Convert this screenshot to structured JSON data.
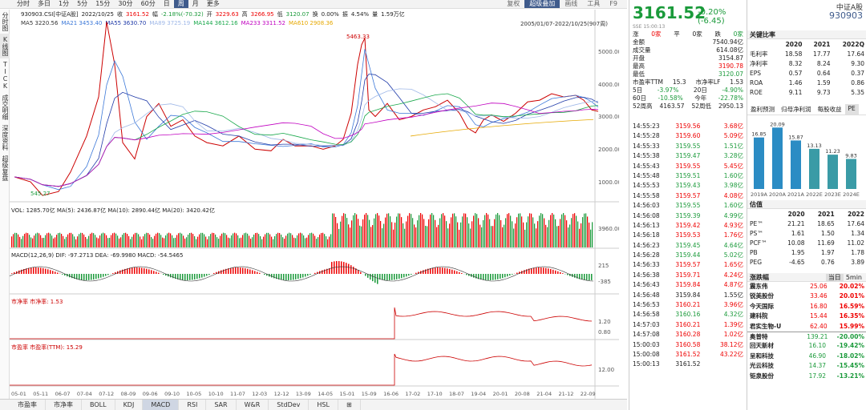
{
  "top_tabs": [
    "分时",
    "多日",
    "1分",
    "5分",
    "15分",
    "30分",
    "60分",
    "日",
    "周",
    "月",
    "更多"
  ],
  "active_tab": "周",
  "top_tools": [
    "复权",
    "超级叠加",
    "画线",
    "工具",
    "F9"
  ],
  "info_bar": {
    "code": "930903.CSI[中证A股]",
    "date": "2022/10/25",
    "close_label": "收",
    "close": "3161.52",
    "amp_label": "幅",
    "amp": "-2.18%(-70.32)",
    "open_label": "开",
    "open": "3229.63",
    "high_label": "高",
    "high": "3266.95",
    "low_label": "低",
    "low": "3120.07",
    "chg_label": "换",
    "chg": "0.00%",
    "swing_label": "振",
    "swing": "4.54%",
    "vol_label": "量",
    "vol": "1.59万亿"
  },
  "ma_items": [
    {
      "t": "MA5 3220.56",
      "c": "#333"
    },
    {
      "t": "MA21 3453.40",
      "c": "#3c78d8"
    },
    {
      "t": "MA55 3630.70",
      "c": "#1f3aa8"
    },
    {
      "t": "MA89 3725.19",
      "c": "#9fb8e8"
    },
    {
      "t": "MA144 3612.16",
      "c": "#19a84b"
    },
    {
      "t": "MA233 3311.52",
      "c": "#c000c0"
    },
    {
      "t": "MA610 2908.36",
      "c": "#e6a800"
    }
  ],
  "date_range": "2005/01/07-2022/10/25(907周)",
  "left_vtabs": [
    "分时图",
    "K线图",
    "TICK",
    "成交明细",
    "深度资料",
    "超级复盘"
  ],
  "price_axis": [
    "5000.00",
    "4000.00",
    "3000.00",
    "2000.00",
    "1000.00"
  ],
  "peak_label": "5463.33",
  "low_label": "545.27",
  "vol_line": "VOL: 1285.70亿  MA(5): 2436.87亿  MA(10): 2890.44亿  MA(20): 3420.42亿",
  "vol_axis": "3960.00亿",
  "macd_line": "MACD(12,26,9)  DIF: -97.2713  DEA: -69.9980  MACD: -54.5465",
  "macd_axis": [
    "215",
    "-385"
  ],
  "pb_line": "市净率  市净率: 1.53",
  "pb_axis": [
    "1.20",
    "0.80"
  ],
  "pe_line": "市盈率  市盈率(TTM): 15.29",
  "pe_axis": [
    "12.00"
  ],
  "x_dates": [
    "05-01",
    "05-11",
    "06-07",
    "07-04",
    "07-12",
    "08-09",
    "09-06",
    "09-10",
    "10-05",
    "10-10",
    "11-07",
    "12-03",
    "12-12",
    "13-09",
    "14-05",
    "15-01",
    "15-09",
    "16-06",
    "17-02",
    "17-10",
    "18-07",
    "19-04",
    "20-01",
    "20-08",
    "21-04",
    "21-12",
    "22-09"
  ],
  "bottom_tabs": [
    "市盈率",
    "市净率",
    "BOLL",
    "KDJ",
    "MACD",
    "RSI",
    "SAR",
    "W&R",
    "StdDev",
    "HSL",
    "⊞"
  ],
  "price": {
    "last": "3161.52",
    "change": "-0.20% (-6.45)",
    "sub": "SSE 15:00:13"
  },
  "header_right": {
    "name": "中证A股",
    "code": "930903"
  },
  "stats_top": [
    {
      "k": "涨",
      "v": "0家"
    },
    {
      "k": "平",
      "v": "0家"
    },
    {
      "k": "跌",
      "v": "0家"
    }
  ],
  "stats": [
    {
      "k": "金额",
      "v": "7540.94亿"
    },
    {
      "k": "成交量",
      "v": "614.08亿"
    },
    {
      "k": "开盘",
      "v": "3154.87"
    },
    {
      "k": "最高",
      "v": "3190.78"
    },
    {
      "k": "最低",
      "v": "3120.07"
    }
  ],
  "stats2": [
    {
      "k": "市盈率TTM",
      "v": "15.3",
      "k2": "市净率LF",
      "v2": "1.53"
    },
    {
      "k": "5日",
      "v": "-3.97%",
      "k2": "20日",
      "v2": "-4.90%"
    },
    {
      "k": "60日",
      "v": "-10.58%",
      "k2": "今年",
      "v2": "-22.78%"
    },
    {
      "k": "52周高",
      "v": "4163.57",
      "k2": "52周低",
      "v2": "2950.13"
    }
  ],
  "trades": [
    {
      "t": "14:55:23",
      "p": "3159.56",
      "v": "3.68亿",
      "d": "r"
    },
    {
      "t": "14:55:28",
      "p": "3159.60",
      "v": "5.09亿",
      "d": "r"
    },
    {
      "t": "14:55:33",
      "p": "3159.55",
      "v": "1.51亿",
      "d": "g"
    },
    {
      "t": "14:55:38",
      "p": "3159.47",
      "v": "3.28亿",
      "d": "g"
    },
    {
      "t": "14:55:43",
      "p": "3159.55",
      "v": "5.45亿",
      "d": "r"
    },
    {
      "t": "14:55:48",
      "p": "3159.51",
      "v": "1.60亿",
      "d": "g"
    },
    {
      "t": "14:55:53",
      "p": "3159.43",
      "v": "3.98亿",
      "d": "g"
    },
    {
      "t": "14:55:58",
      "p": "3159.57",
      "v": "4.08亿",
      "d": "r"
    },
    {
      "t": "14:56:03",
      "p": "3159.55",
      "v": "1.60亿",
      "d": "g"
    },
    {
      "t": "14:56:08",
      "p": "3159.39",
      "v": "4.99亿",
      "d": "g"
    },
    {
      "t": "14:56:13",
      "p": "3159.42",
      "v": "4.93亿",
      "d": "r"
    },
    {
      "t": "14:56:18",
      "p": "3159.53",
      "v": "1.76亿",
      "d": "r"
    },
    {
      "t": "14:56:23",
      "p": "3159.45",
      "v": "4.64亿",
      "d": "g"
    },
    {
      "t": "14:56:28",
      "p": "3159.44",
      "v": "5.02亿",
      "d": "g"
    },
    {
      "t": "14:56:33",
      "p": "3159.57",
      "v": "1.65亿",
      "d": "r"
    },
    {
      "t": "14:56:38",
      "p": "3159.71",
      "v": "4.24亿",
      "d": "r"
    },
    {
      "t": "14:56:43",
      "p": "3159.84",
      "v": "4.87亿",
      "d": "r"
    },
    {
      "t": "14:56:48",
      "p": "3159.84",
      "v": "1.55亿",
      "d": ""
    },
    {
      "t": "14:56:53",
      "p": "3160.21",
      "v": "3.96亿",
      "d": "r"
    },
    {
      "t": "14:56:58",
      "p": "3160.16",
      "v": "4.32亿",
      "d": "g"
    },
    {
      "t": "14:57:03",
      "p": "3160.21",
      "v": "1.39亿",
      "d": "r"
    },
    {
      "t": "14:57:08",
      "p": "3160.28",
      "v": "1.02亿",
      "d": "r"
    },
    {
      "t": "15:00:03",
      "p": "3160.58",
      "v": "38.12亿",
      "d": "r"
    },
    {
      "t": "15:00:08",
      "p": "3161.52",
      "v": "43.22亿",
      "d": "r"
    },
    {
      "t": "15:00:13",
      "p": "3161.52",
      "v": "",
      "d": ""
    }
  ],
  "ratios": {
    "title": "关键比率",
    "years": [
      "2020",
      "2021",
      "2022Q"
    ],
    "rows": [
      {
        "k": "毛利率",
        "v": [
          "18.58",
          "17.77",
          "17.64"
        ]
      },
      {
        "k": "净利率",
        "v": [
          "8.32",
          "8.24",
          "9.30"
        ]
      },
      {
        "k": "EPS",
        "v": [
          "0.57",
          "0.64",
          "0.37"
        ]
      },
      {
        "k": "ROA",
        "v": [
          "1.46",
          "1.59",
          "0.86"
        ]
      },
      {
        "k": "ROE",
        "v": [
          "9.11",
          "9.73",
          "5.35"
        ]
      }
    ]
  },
  "profit_tabs": [
    "盈利预测",
    "归母净利润",
    "每股收益",
    "PE"
  ],
  "profit_chart": {
    "categories": [
      "2019A",
      "2020A",
      "2021A",
      "2022E",
      "2023E",
      "2024E"
    ],
    "values": [
      16.85,
      20.09,
      15.87,
      13.13,
      11.23,
      9.83
    ]
  },
  "valuation": {
    "title": "估值",
    "years": [
      "2020",
      "2021",
      "2022"
    ],
    "rows": [
      {
        "k": "PE™",
        "v": [
          "21.21",
          "18.65",
          "17.64"
        ]
      },
      {
        "k": "PS™",
        "v": [
          "1.61",
          "1.50",
          "1.34"
        ]
      },
      {
        "k": "PCF™",
        "v": [
          "10.08",
          "11.69",
          "11.02"
        ]
      },
      {
        "k": "PB",
        "v": [
          "1.95",
          "1.97",
          "1.78"
        ]
      },
      {
        "k": "PEG",
        "v": [
          "-4.65",
          "0.76",
          "3.89"
        ]
      }
    ]
  },
  "movers_title": "涨跌幅",
  "movers_tabs": [
    "当日",
    "5min"
  ],
  "movers": [
    {
      "n": "震东伟",
      "p": "25.06",
      "c": "20.02%",
      "d": "r"
    },
    {
      "n": "锐美股份",
      "p": "33.46",
      "c": "20.01%",
      "d": "r"
    },
    {
      "n": "今天国际",
      "p": "16.80",
      "c": "16.59%",
      "d": "r"
    },
    {
      "n": "建科院",
      "p": "15.44",
      "c": "16.35%",
      "d": "r"
    },
    {
      "n": "君实生物-U",
      "p": "62.40",
      "c": "15.99%",
      "d": "r"
    },
    {
      "n": "奥普特",
      "p": "139.21",
      "c": "-20.00%",
      "d": "g"
    },
    {
      "n": "回天新材",
      "p": "16.10",
      "c": "-19.42%",
      "d": "g"
    },
    {
      "n": "呈和科技",
      "p": "46.90",
      "c": "-18.02%",
      "d": "g"
    },
    {
      "n": "光云科技",
      "p": "14.37",
      "c": "-15.45%",
      "d": "g"
    },
    {
      "n": "钜泉股份",
      "p": "17.92",
      "c": "-13.21%",
      "d": "g"
    }
  ],
  "colors": {
    "up": "#e00000",
    "down": "#1a9a3a",
    "accent": "#3f5b8c",
    "bar": "#2b8cc4",
    "bar_est": "#3a9ba6"
  }
}
